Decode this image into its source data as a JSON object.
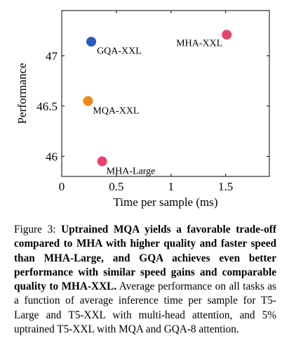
{
  "chart_data": {
    "type": "scatter",
    "xlabel": "Time per sample (ms)",
    "ylabel": "Performance",
    "xlim": [
      0,
      1.9
    ],
    "ylim": [
      45.8,
      47.45
    ],
    "xticks": [
      0,
      0.5,
      1,
      1.5
    ],
    "xtick_labels": [
      "0",
      "0.5",
      "1",
      "1.5"
    ],
    "yticks": [
      46,
      46.5,
      47
    ],
    "ytick_labels": [
      "46",
      "46.5",
      "47"
    ],
    "grid": false,
    "points": [
      {
        "label": "GQA-XXL",
        "x": 0.27,
        "y": 47.14,
        "color": "#2b59c3"
      },
      {
        "label": "MHA-XXL",
        "x": 1.51,
        "y": 47.21,
        "color": "#e8436b"
      },
      {
        "label": "MQA-XXL",
        "x": 0.24,
        "y": 46.55,
        "color": "#ef8a17"
      },
      {
        "label": "MHA-Large",
        "x": 0.37,
        "y": 45.95,
        "color": "#e8436b"
      }
    ]
  },
  "caption": {
    "prefix": "Figure 3: ",
    "bold": "Uptrained MQA yields a favorable trade-off compared to MHA with higher quality and faster speed than MHA-Large, and GQA achieves even better performance with similar speed gains and comparable quality to MHA-XXL.",
    "rest": " Average performance on all tasks as a function of average inference time per sample for T5-Large and T5-XXL with multi-head attention, and 5% uptrained T5-XXL with MQA and GQA-8 attention."
  }
}
